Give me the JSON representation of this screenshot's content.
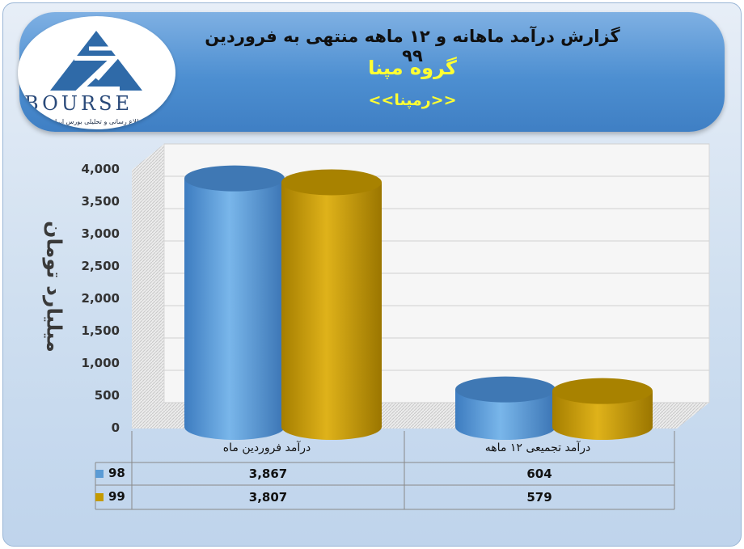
{
  "header": {
    "title": "گزارش درآمد ماهانه و ۱۲ ماهه منتهی به فروردین ۹۹",
    "company": "گروه مپنا",
    "symbol": "<<رمپنا>>"
  },
  "logo": {
    "text": "BOURSE",
    "subtitle": "پایگاه اطلاع رسانی و تحلیلی بورس ایران"
  },
  "colors": {
    "series98": "#5b9bd5",
    "series99": "#c49a00",
    "banner": "#4d8fd1"
  },
  "chart_data": {
    "type": "bar",
    "style": "3d-cylinder",
    "categories": [
      "درآمد فروردین  ماه",
      "درآمد تجمیعی ۱۲ ماهه"
    ],
    "series": [
      {
        "name": "98",
        "values": [
          3867,
          604
        ]
      },
      {
        "name": "99",
        "values": [
          3807,
          579
        ]
      }
    ],
    "value_labels": [
      [
        "3,867",
        "604"
      ],
      [
        "3,807",
        "579"
      ]
    ],
    "ylabel": "میلیارد تومان",
    "ylim": [
      0,
      4000
    ],
    "yticks": [
      "0",
      "500",
      "1,000",
      "1,500",
      "2,000",
      "2,500",
      "3,000",
      "3,500",
      "4,000"
    ],
    "grid": true,
    "legend": "data-table"
  }
}
